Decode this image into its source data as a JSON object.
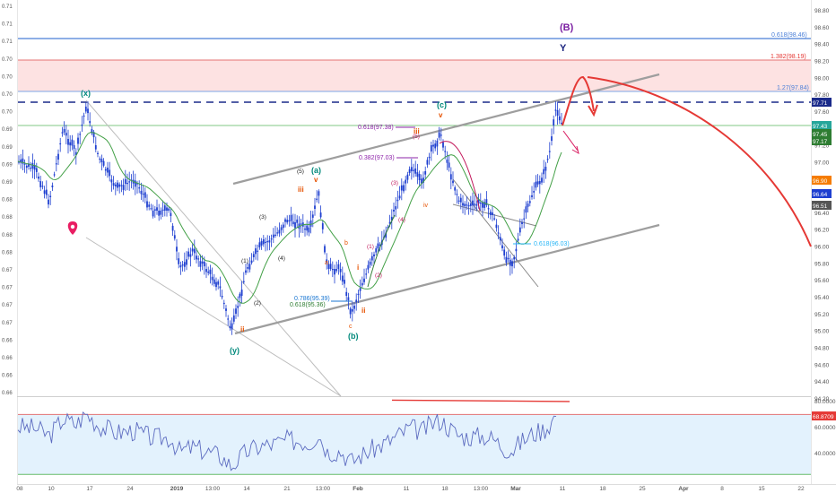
{
  "chart_data": {
    "type": "candlestick",
    "symbol_style": "elliott-wave-analysis",
    "left_axis_labels": [
      "0.71",
      "0.71",
      "0.71",
      "0.70",
      "0.70",
      "0.70",
      "0.70",
      "0.69",
      "0.69",
      "0.69",
      "0.69",
      "0.68",
      "0.68",
      "0.68",
      "0.68",
      "0.67",
      "0.67",
      "0.67",
      "0.67",
      "0.66",
      "0.66",
      "0.66",
      "0.66"
    ],
    "right_axis_ticks": [
      "98.80",
      "98.60",
      "98.40",
      "98.20",
      "98.00",
      "97.80",
      "97.60",
      "97.40",
      "97.20",
      "97.00",
      "96.80",
      "96.60",
      "96.40",
      "96.20",
      "96.00",
      "95.80",
      "95.60",
      "95.40",
      "95.20",
      "95.00",
      "94.80",
      "94.60",
      "94.40",
      "94.20"
    ],
    "x_axis_labels": [
      "08",
      "10",
      "17",
      "24",
      "2019",
      "13:00",
      "14",
      "21",
      "13:00",
      "Feb",
      "11",
      "18",
      "13:00",
      "Mar",
      "11",
      "18",
      "25",
      "Apr",
      "8",
      "15",
      "22"
    ],
    "price_badges": [
      {
        "value": "97.71",
        "color": "#1a2a8a"
      },
      {
        "value": "97.43",
        "color": "#26a69a"
      },
      {
        "value": "97.45",
        "color": "#2e7d32"
      },
      {
        "value": "97.17",
        "color": "#2e7d32"
      },
      {
        "value": "96.90",
        "color": "#f57c00"
      },
      {
        "value": "96.64",
        "color": "#1e3fd0"
      },
      {
        "value": "96.51",
        "color": "#555555"
      }
    ],
    "fib_levels": [
      {
        "label": "0.618(98.46)",
        "color": "#4a7fd8"
      },
      {
        "label": "1.382(98.19)",
        "color": "#e53935"
      },
      {
        "label": "1.27(97.84)",
        "color": "#4a7fd8"
      },
      {
        "label": "0.618(97.38)",
        "color": "#8e24aa"
      },
      {
        "label": "0.382(97.03)",
        "color": "#8e24aa"
      },
      {
        "label": "0.618(96.03)",
        "color": "#29b6f6"
      },
      {
        "label": "0.786(95.39)",
        "color": "#1976d2"
      },
      {
        "label": "0.618(95.36)",
        "color": "#2e7d32"
      }
    ],
    "wave_labels": [
      {
        "text": "(B)",
        "color": "#7b1fa2"
      },
      {
        "text": "Y",
        "color": "#1a237e"
      },
      {
        "text": "(x)",
        "color": "#00897b"
      },
      {
        "text": "(y)",
        "color": "#00897b"
      },
      {
        "text": "(a)",
        "color": "#00897b"
      },
      {
        "text": "(b)",
        "color": "#00897b"
      },
      {
        "text": "(c)",
        "color": "#00897b"
      },
      {
        "text": "v",
        "color": "#e65100"
      },
      {
        "text": "v",
        "color": "#e65100"
      },
      {
        "text": "iii",
        "color": "#e65100"
      },
      {
        "text": "iii",
        "color": "#e65100"
      },
      {
        "text": "iv",
        "color": "#e65100"
      },
      {
        "text": "ii",
        "color": "#e65100"
      },
      {
        "text": "ii",
        "color": "#e65100"
      },
      {
        "text": "i",
        "color": "#e65100"
      },
      {
        "text": "a",
        "color": "#e65100"
      },
      {
        "text": "b",
        "color": "#e65100"
      },
      {
        "text": "c",
        "color": "#e65100"
      },
      {
        "text": "(1)",
        "color": "#222222"
      },
      {
        "text": "(2)",
        "color": "#222222"
      },
      {
        "text": "(3)",
        "color": "#222222"
      },
      {
        "text": "(4)",
        "color": "#222222"
      },
      {
        "text": "(5)",
        "color": "#222222"
      },
      {
        "text": "(1)",
        "color": "#c2185b"
      },
      {
        "text": "(2)",
        "color": "#c2185b"
      },
      {
        "text": "(3)",
        "color": "#c2185b"
      },
      {
        "text": "(4)",
        "color": "#c2185b"
      },
      {
        "text": "(5)",
        "color": "#c2185b"
      }
    ],
    "oscillator": {
      "ticks": [
        "80.0000",
        "60.0000",
        "40.0000"
      ],
      "current_value": "68.8709",
      "current_color": "#e53935",
      "band_color": "#e3f2fd"
    },
    "colors": {
      "candles": "#1e3fd0",
      "target_zone": "#fde2e2",
      "projection": "#e53935",
      "channel": "#9e9e9e",
      "rsi_line": "#5c6bc0"
    }
  }
}
